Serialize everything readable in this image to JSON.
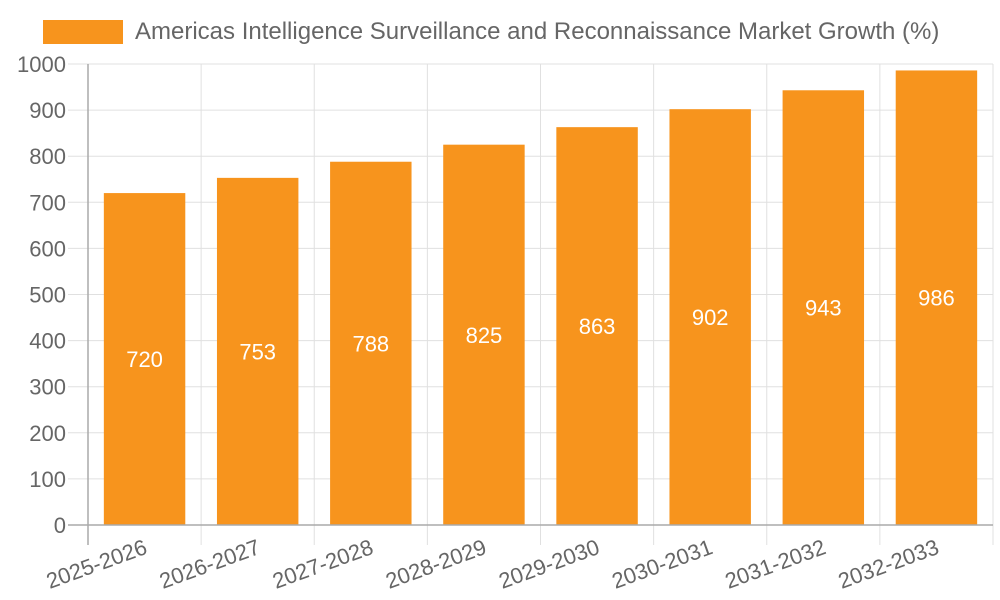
{
  "chart_data": {
    "type": "bar",
    "title": "Americas Intelligence Surveillance and Reconnaissance Market Growth (%)",
    "legend": [
      {
        "name": "Americas Intelligence Surveillance and Reconnaissance Market Growth (%)",
        "color": "#f7941d"
      }
    ],
    "legend_position": "top",
    "categories": [
      "2025-2026",
      "2026-2027",
      "2027-2028",
      "2028-2029",
      "2029-2030",
      "2030-2031",
      "2031-2032",
      "2032-2033"
    ],
    "series": [
      {
        "name": "Americas Intelligence Surveillance and Reconnaissance Market Growth (%)",
        "values": [
          720,
          753,
          788,
          825,
          863,
          902,
          943,
          986
        ],
        "color": "#f7941d"
      }
    ],
    "xlabel": "",
    "ylabel": "",
    "ylim": [
      0,
      1000
    ],
    "yticks": [
      0,
      100,
      200,
      300,
      400,
      500,
      600,
      700,
      800,
      900,
      1000
    ],
    "grid": true,
    "data_labels": true
  }
}
